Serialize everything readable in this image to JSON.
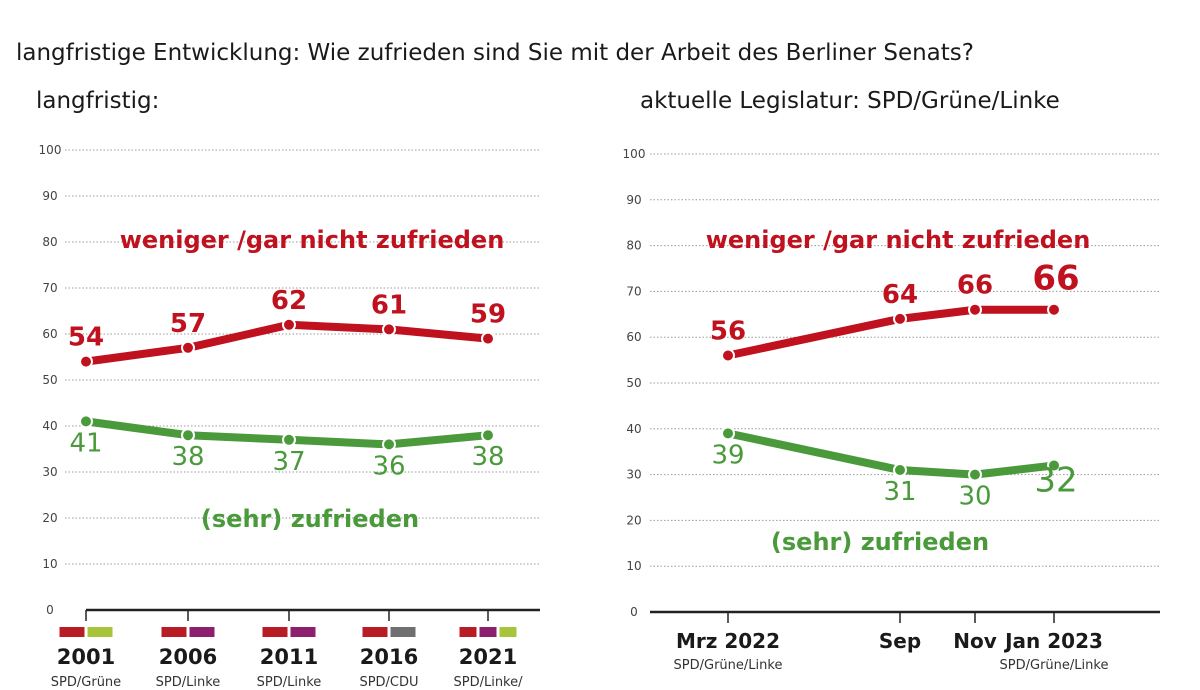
{
  "title": "langfristige Entwicklung: Wie zufrieden sind Sie mit der Arbeit des Berliner Senats?",
  "colors": {
    "unzufrieden": "#c0111f",
    "zufrieden": "#4a9a3c",
    "SPD": "#b81c25",
    "Grüne": "#a8c43a",
    "Linke": "#8c1f6e",
    "CDU": "#707070"
  },
  "chart_data": [
    {
      "type": "line",
      "title": "langfristig:",
      "ylim": [
        0,
        100
      ],
      "yticks": [
        0,
        10,
        20,
        30,
        40,
        50,
        60,
        70,
        80,
        90,
        100
      ],
      "grid": true,
      "categories": [
        "2001",
        "2006",
        "2011",
        "2016",
        "2021"
      ],
      "coalitions": [
        "SPD/Grüne",
        "SPD/Linke",
        "SPD/Linke",
        "SPD/CDU",
        "SPD/Linke/"
      ],
      "coalition_colors": [
        [
          "SPD",
          "Grüne"
        ],
        [
          "SPD",
          "Linke"
        ],
        [
          "SPD",
          "Linke"
        ],
        [
          "SPD",
          "CDU"
        ],
        [
          "SPD",
          "Linke",
          "Grüne"
        ]
      ],
      "series": [
        {
          "name": "weniger /gar nicht zufrieden",
          "key": "unzufrieden",
          "values": [
            54,
            57,
            62,
            61,
            59
          ]
        },
        {
          "name": "(sehr) zufrieden",
          "key": "zufrieden",
          "values": [
            41,
            38,
            37,
            36,
            38
          ]
        }
      ]
    },
    {
      "type": "line",
      "title": "aktuelle Legislatur: SPD/Grüne/Linke",
      "ylim": [
        0,
        100
      ],
      "yticks": [
        0,
        10,
        20,
        30,
        40,
        50,
        60,
        70,
        80,
        90,
        100
      ],
      "grid": true,
      "categories": [
        "Mrz 2022",
        "Sep",
        "Nov",
        "Jan 2023"
      ],
      "sublabels": [
        "SPD/Grüne/Linke",
        "",
        "",
        "SPD/Grüne/Linke"
      ],
      "series": [
        {
          "name": "weniger /gar nicht zufrieden",
          "key": "unzufrieden",
          "values": [
            56,
            64,
            66,
            66
          ]
        },
        {
          "name": "(sehr) zufrieden",
          "key": "zufrieden",
          "values": [
            39,
            31,
            30,
            32
          ]
        }
      ]
    }
  ]
}
